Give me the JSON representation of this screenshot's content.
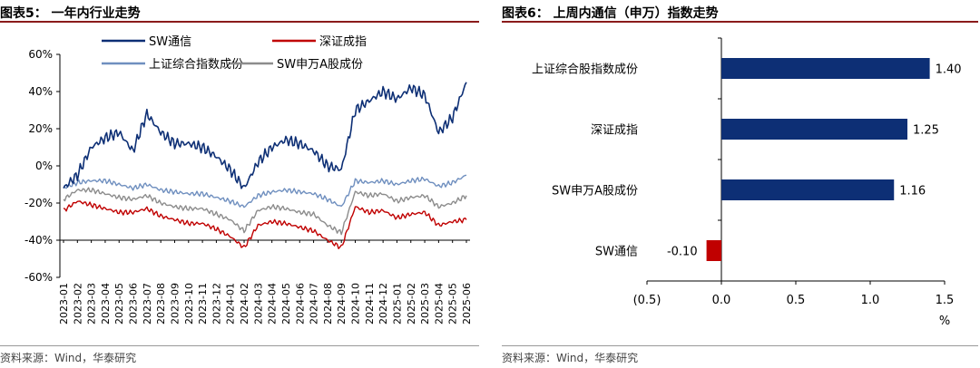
{
  "left": {
    "header": "图表5：  一年内行业走势",
    "source": "资料来源：Wind，华泰研究",
    "chart_data": {
      "type": "line",
      "x": [
        "2023-01",
        "2023-02",
        "2023-03",
        "2023-04",
        "2023-05",
        "2023-06",
        "2023-07",
        "2023-08",
        "2023-09",
        "2023-10",
        "2023-11",
        "2023-12",
        "2024-01",
        "2024-02",
        "2024-03",
        "2024-04",
        "2024-05",
        "2024-06",
        "2024-07",
        "2024-08",
        "2024-09",
        "2024-10",
        "2024-11",
        "2024-12",
        "2025-01",
        "2025-02",
        "2025-03",
        "2025-04",
        "2025-05",
        "2025-06"
      ],
      "ylim": [
        -60,
        60
      ],
      "yticks": [
        -60,
        -40,
        -20,
        0,
        20,
        40,
        60
      ],
      "ytick_labels": [
        "-60%",
        "-40%",
        "-20%",
        "0%",
        "20%",
        "40%",
        "60%"
      ],
      "legend_position": "top",
      "series": [
        {
          "name": "SW通信",
          "color": "#0d2f75",
          "values": [
            -12,
            -5,
            10,
            15,
            18,
            8,
            28,
            18,
            12,
            12,
            10,
            5,
            -2,
            -12,
            2,
            10,
            14,
            12,
            8,
            0,
            -2,
            30,
            35,
            40,
            36,
            42,
            38,
            18,
            26,
            45
          ]
        },
        {
          "name": "深证成指",
          "color": "#c00000",
          "values": [
            -24,
            -19,
            -21,
            -23,
            -25,
            -25,
            -23,
            -27,
            -29,
            -31,
            -31,
            -34,
            -38,
            -44,
            -32,
            -30,
            -31,
            -33,
            -35,
            -40,
            -44,
            -22,
            -25,
            -24,
            -28,
            -26,
            -25,
            -32,
            -30,
            -29
          ]
        },
        {
          "name": "上证综合指数成份",
          "color": "#6f8fbf",
          "values": [
            -12,
            -9,
            -8,
            -8,
            -10,
            -12,
            -10,
            -13,
            -14,
            -15,
            -15,
            -17,
            -19,
            -22,
            -16,
            -14,
            -13,
            -14,
            -15,
            -18,
            -22,
            -8,
            -9,
            -8,
            -10,
            -8,
            -7,
            -11,
            -9,
            -5
          ]
        },
        {
          "name": "SW申万A股成份",
          "color": "#8c8c8c",
          "values": [
            -18,
            -13,
            -13,
            -15,
            -17,
            -18,
            -16,
            -20,
            -22,
            -23,
            -23,
            -26,
            -29,
            -35,
            -24,
            -22,
            -23,
            -25,
            -26,
            -32,
            -36,
            -14,
            -16,
            -15,
            -19,
            -17,
            -16,
            -22,
            -20,
            -16
          ]
        }
      ]
    }
  },
  "right": {
    "header": "图表6：  上周内通信（申万）指数走势",
    "source": "资料来源：Wind，华泰研究",
    "chart_data": {
      "type": "bar",
      "orientation": "horizontal",
      "categories": [
        "上证综合股指数成份",
        "深证成指",
        "SW申万A股成份",
        "SW通信"
      ],
      "values": [
        1.4,
        1.25,
        1.16,
        -0.1
      ],
      "value_labels": [
        "1.40",
        "1.25",
        "1.16",
        "-0.10"
      ],
      "xlim": [
        -0.5,
        1.5
      ],
      "xticks": [
        -0.5,
        0,
        0.5,
        1,
        1.5
      ],
      "xtick_labels": [
        "(0.5)",
        "0.0",
        "0.5",
        "1.0",
        "1.5"
      ],
      "xlabel": "%",
      "colors": {
        "positive": "#0d2f75",
        "negative": "#c00000"
      }
    }
  }
}
